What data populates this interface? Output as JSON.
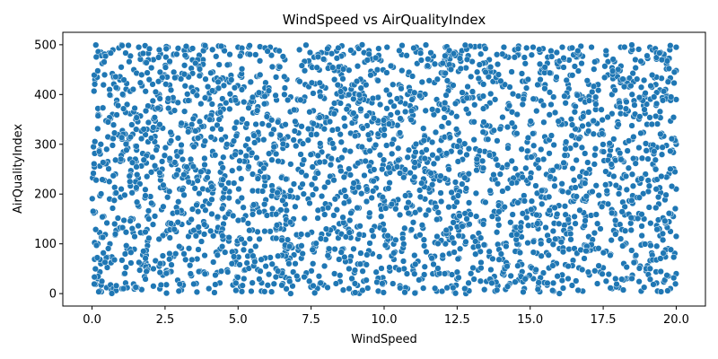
{
  "chart_data": {
    "type": "scatter",
    "title": "WindSpeed vs AirQualityIndex",
    "xlabel": "WindSpeed",
    "ylabel": "AirQualityIndex",
    "xlim": [
      -1.0,
      21.0
    ],
    "ylim": [
      -25,
      525
    ],
    "x_ticks": [
      0.0,
      2.5,
      5.0,
      7.5,
      10.0,
      12.5,
      15.0,
      17.5,
      20.0
    ],
    "x_tick_labels": [
      "0.0",
      "2.5",
      "5.0",
      "7.5",
      "10.0",
      "12.5",
      "15.0",
      "17.5",
      "20.0"
    ],
    "y_ticks": [
      0,
      100,
      200,
      300,
      400,
      500
    ],
    "y_tick_labels": [
      "0",
      "100",
      "200",
      "300",
      "400",
      "500"
    ],
    "grid": false,
    "marker_color": "#1f77b4",
    "marker_edge_color": "#ffffff",
    "x_range": [
      0.0,
      20.0
    ],
    "y_range": [
      0,
      500
    ],
    "point_count": 3000,
    "points": [
      [
        0.1,
        430
      ],
      [
        0.2,
        372
      ],
      [
        0.3,
        485
      ],
      [
        0.3,
        300
      ],
      [
        0.1,
        255
      ],
      [
        0.4,
        155
      ],
      [
        0.2,
        100
      ],
      [
        0.3,
        60
      ],
      [
        0.2,
        30
      ],
      [
        0.6,
        410
      ],
      [
        0.7,
        360
      ],
      [
        0.5,
        290
      ],
      [
        0.8,
        240
      ],
      [
        0.6,
        190
      ],
      [
        0.9,
        130
      ],
      [
        0.7,
        70
      ],
      [
        0.5,
        12
      ],
      [
        1.0,
        455
      ],
      [
        1.2,
        380
      ],
      [
        1.1,
        320
      ],
      [
        1.3,
        270
      ],
      [
        1.0,
        210
      ],
      [
        1.4,
        150
      ],
      [
        1.2,
        90
      ],
      [
        1.1,
        40
      ],
      [
        1.6,
        495
      ],
      [
        1.7,
        420
      ],
      [
        1.5,
        350
      ],
      [
        1.8,
        265
      ],
      [
        1.6,
        175
      ],
      [
        1.9,
        105
      ],
      [
        1.7,
        8
      ],
      [
        2.1,
        470
      ],
      [
        2.3,
        400
      ],
      [
        2.2,
        330
      ],
      [
        2.4,
        250
      ],
      [
        2.0,
        195
      ],
      [
        2.5,
        120
      ],
      [
        2.3,
        55
      ],
      [
        2.1,
        15
      ],
      [
        2.6,
        495
      ],
      [
        2.8,
        445
      ],
      [
        2.7,
        365
      ],
      [
        2.9,
        285
      ],
      [
        3.0,
        210
      ],
      [
        2.6,
        140
      ],
      [
        2.8,
        75
      ],
      [
        3.1,
        20
      ],
      [
        3.3,
        490
      ],
      [
        3.5,
        410
      ],
      [
        3.2,
        340
      ],
      [
        3.4,
        260
      ],
      [
        3.6,
        180
      ],
      [
        3.3,
        115
      ],
      [
        3.7,
        45
      ],
      [
        3.8,
        470
      ],
      [
        4.0,
        390
      ],
      [
        4.2,
        310
      ],
      [
        3.9,
        230
      ],
      [
        4.1,
        160
      ],
      [
        4.3,
        85
      ],
      [
        4.0,
        10
      ],
      [
        4.5,
        495
      ],
      [
        4.6,
        430
      ],
      [
        4.4,
        355
      ],
      [
        4.8,
        275
      ],
      [
        4.7,
        205
      ],
      [
        4.5,
        140
      ],
      [
        4.9,
        60
      ],
      [
        5.0,
        495
      ],
      [
        5.2,
        415
      ],
      [
        5.1,
        345
      ],
      [
        5.3,
        265
      ],
      [
        5.0,
        185
      ],
      [
        5.4,
        110
      ],
      [
        5.2,
        30
      ],
      [
        5.6,
        480
      ],
      [
        5.8,
        400
      ],
      [
        5.7,
        320
      ],
      [
        5.5,
        240
      ],
      [
        5.9,
        165
      ],
      [
        5.6,
        95
      ],
      [
        5.8,
        5
      ],
      [
        6.1,
        495
      ],
      [
        6.3,
        435
      ],
      [
        6.0,
        360
      ],
      [
        6.2,
        285
      ],
      [
        6.4,
        210
      ],
      [
        6.1,
        125
      ],
      [
        6.3,
        50
      ],
      [
        6.6,
        470
      ],
      [
        6.8,
        395
      ],
      [
        6.7,
        315
      ],
      [
        6.5,
        235
      ],
      [
        6.9,
        150
      ],
      [
        6.6,
        80
      ],
      [
        6.8,
        0
      ],
      [
        7.1,
        490
      ],
      [
        7.3,
        420
      ],
      [
        7.0,
        340
      ],
      [
        7.2,
        260
      ],
      [
        7.4,
        190
      ],
      [
        7.1,
        115
      ],
      [
        7.3,
        35
      ],
      [
        7.6,
        475
      ],
      [
        7.8,
        405
      ],
      [
        7.5,
        325
      ],
      [
        7.7,
        245
      ],
      [
        7.9,
        170
      ],
      [
        7.6,
        100
      ],
      [
        7.8,
        20
      ],
      [
        8.1,
        495
      ],
      [
        8.3,
        430
      ],
      [
        8.0,
        350
      ],
      [
        8.2,
        270
      ],
      [
        8.4,
        195
      ],
      [
        8.1,
        120
      ],
      [
        8.3,
        40
      ],
      [
        8.6,
        480
      ],
      [
        8.8,
        400
      ],
      [
        8.5,
        320
      ],
      [
        8.7,
        240
      ],
      [
        8.9,
        165
      ],
      [
        8.6,
        90
      ],
      [
        8.8,
        10
      ],
      [
        9.1,
        495
      ],
      [
        9.3,
        425
      ],
      [
        9.0,
        345
      ],
      [
        9.2,
        265
      ],
      [
        9.4,
        185
      ],
      [
        9.1,
        110
      ],
      [
        9.3,
        25
      ],
      [
        9.6,
        470
      ],
      [
        9.8,
        395
      ],
      [
        9.5,
        310
      ],
      [
        9.7,
        230
      ],
      [
        9.9,
        155
      ],
      [
        9.6,
        80
      ],
      [
        9.8,
        5
      ],
      [
        10.1,
        495
      ],
      [
        10.3,
        420
      ],
      [
        10.0,
        340
      ],
      [
        10.2,
        260
      ],
      [
        10.4,
        180
      ],
      [
        10.1,
        105
      ],
      [
        10.3,
        20
      ],
      [
        10.6,
        480
      ],
      [
        10.8,
        400
      ],
      [
        10.5,
        320
      ],
      [
        10.7,
        240
      ],
      [
        10.9,
        160
      ],
      [
        10.6,
        85
      ],
      [
        10.8,
        10
      ],
      [
        11.1,
        495
      ],
      [
        11.3,
        425
      ],
      [
        11.0,
        345
      ],
      [
        11.2,
        265
      ],
      [
        11.4,
        190
      ],
      [
        11.1,
        115
      ],
      [
        11.3,
        30
      ],
      [
        11.6,
        470
      ],
      [
        11.8,
        390
      ],
      [
        11.5,
        310
      ],
      [
        11.7,
        230
      ],
      [
        11.9,
        150
      ],
      [
        11.6,
        75
      ],
      [
        11.8,
        5
      ],
      [
        12.1,
        495
      ],
      [
        12.3,
        415
      ],
      [
        12.0,
        335
      ],
      [
        12.2,
        255
      ],
      [
        12.4,
        175
      ],
      [
        12.1,
        100
      ],
      [
        12.3,
        15
      ],
      [
        12.6,
        480
      ],
      [
        12.8,
        400
      ],
      [
        12.5,
        320
      ],
      [
        12.7,
        240
      ],
      [
        12.9,
        165
      ],
      [
        12.6,
        90
      ],
      [
        12.8,
        0
      ],
      [
        13.1,
        495
      ],
      [
        13.3,
        425
      ],
      [
        13.0,
        345
      ],
      [
        13.2,
        265
      ],
      [
        13.4,
        185
      ],
      [
        13.1,
        110
      ],
      [
        13.3,
        25
      ],
      [
        13.6,
        470
      ],
      [
        13.8,
        390
      ],
      [
        13.5,
        310
      ],
      [
        13.7,
        230
      ],
      [
        13.9,
        150
      ],
      [
        13.6,
        75
      ],
      [
        13.8,
        5
      ],
      [
        14.1,
        495
      ],
      [
        14.3,
        415
      ],
      [
        14.0,
        335
      ],
      [
        14.2,
        255
      ],
      [
        14.4,
        180
      ],
      [
        14.1,
        100
      ],
      [
        14.3,
        20
      ],
      [
        14.6,
        480
      ],
      [
        14.8,
        400
      ],
      [
        14.5,
        320
      ],
      [
        14.7,
        240
      ],
      [
        14.9,
        165
      ],
      [
        14.6,
        85
      ],
      [
        14.8,
        10
      ],
      [
        15.1,
        495
      ],
      [
        15.3,
        420
      ],
      [
        15.0,
        340
      ],
      [
        15.2,
        260
      ],
      [
        15.4,
        180
      ],
      [
        15.1,
        105
      ],
      [
        15.3,
        25
      ],
      [
        15.6,
        475
      ],
      [
        15.8,
        395
      ],
      [
        15.5,
        315
      ],
      [
        15.7,
        235
      ],
      [
        15.9,
        155
      ],
      [
        15.6,
        80
      ],
      [
        15.8,
        5
      ],
      [
        16.1,
        495
      ],
      [
        16.3,
        420
      ],
      [
        16.0,
        340
      ],
      [
        16.2,
        260
      ],
      [
        16.4,
        185
      ],
      [
        16.1,
        110
      ],
      [
        16.3,
        30
      ],
      [
        16.6,
        475
      ],
      [
        16.8,
        395
      ],
      [
        16.5,
        315
      ],
      [
        16.7,
        235
      ],
      [
        16.9,
        155
      ],
      [
        16.6,
        80
      ],
      [
        16.8,
        5
      ],
      [
        17.1,
        495
      ],
      [
        17.3,
        420
      ],
      [
        17.0,
        340
      ],
      [
        17.2,
        260
      ],
      [
        17.4,
        180
      ],
      [
        17.1,
        100
      ],
      [
        17.3,
        20
      ],
      [
        17.6,
        480
      ],
      [
        17.8,
        400
      ],
      [
        17.5,
        320
      ],
      [
        17.7,
        240
      ],
      [
        17.9,
        160
      ],
      [
        17.6,
        85
      ],
      [
        17.8,
        10
      ],
      [
        18.1,
        495
      ],
      [
        18.3,
        425
      ],
      [
        18.0,
        345
      ],
      [
        18.2,
        265
      ],
      [
        18.4,
        185
      ],
      [
        18.1,
        110
      ],
      [
        18.3,
        30
      ],
      [
        18.6,
        470
      ],
      [
        18.8,
        390
      ],
      [
        18.5,
        310
      ],
      [
        18.7,
        230
      ],
      [
        18.9,
        150
      ],
      [
        18.6,
        75
      ],
      [
        18.8,
        5
      ],
      [
        19.1,
        495
      ],
      [
        19.3,
        420
      ],
      [
        19.0,
        340
      ],
      [
        19.2,
        260
      ],
      [
        19.4,
        180
      ],
      [
        19.1,
        100
      ],
      [
        19.3,
        20
      ],
      [
        19.6,
        475
      ],
      [
        19.8,
        395
      ],
      [
        19.5,
        315
      ],
      [
        19.7,
        235
      ],
      [
        19.9,
        155
      ],
      [
        19.6,
        80
      ],
      [
        19.8,
        10
      ],
      [
        20.0,
        495
      ],
      [
        20.0,
        390
      ],
      [
        20.0,
        300
      ],
      [
        20.0,
        210
      ],
      [
        20.0,
        115
      ],
      [
        20.0,
        40
      ]
    ]
  }
}
